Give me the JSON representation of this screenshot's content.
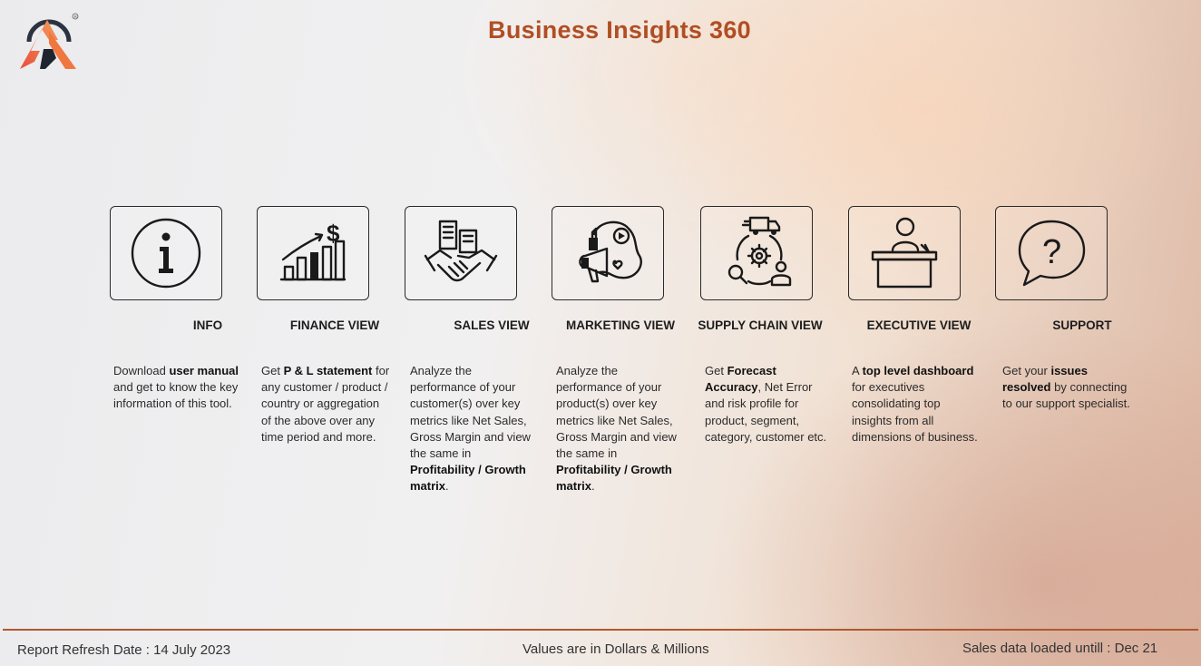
{
  "header": {
    "title": "Business Insights 360",
    "logo_icon": "atliq-logo-icon"
  },
  "cards": [
    {
      "title": "INFO",
      "icon": "info-icon",
      "desc": [
        "Download ",
        {
          "b": "user manual"
        },
        " and get to know the key information of this tool."
      ]
    },
    {
      "title": "FINANCE VIEW",
      "icon": "finance-chart-icon",
      "desc": [
        "Get ",
        {
          "b": "P & L statement"
        },
        " for any customer / product / country or aggregation of the above over any time period and more."
      ]
    },
    {
      "title": "SALES VIEW",
      "icon": "handshake-icon",
      "desc": [
        "Analyze the performance of  your customer(s) over key metrics like Net Sales, Gross Margin and view the same in ",
        {
          "b": "Profitability / Growth matrix"
        },
        "."
      ]
    },
    {
      "title": "MARKETING VIEW",
      "icon": "megaphone-icon",
      "desc": [
        "Analyze the performance of  your product(s) over key metrics like Net Sales, Gross Margin and view the same in ",
        {
          "b": "Profitability / Growth matrix"
        },
        "."
      ]
    },
    {
      "title": "SUPPLY CHAIN VIEW",
      "icon": "supply-chain-icon",
      "desc": [
        "Get ",
        {
          "b": "Forecast Accuracy"
        },
        ", Net Error and risk profile for product, segment, category, customer etc."
      ]
    },
    {
      "title": "EXECUTIVE VIEW",
      "icon": "executive-desk-icon",
      "desc": [
        "A ",
        {
          "b": "top level dashboard"
        },
        " for executives consolidating top insights from all dimensions of business."
      ]
    },
    {
      "title": "SUPPORT",
      "icon": "question-bubble-icon",
      "desc": [
        "Get your ",
        {
          "b": "issues resolved"
        },
        " by connecting to our support specialist."
      ]
    }
  ],
  "footer": {
    "refresh": "Report Refresh Date : 14 July 2023",
    "units": "Values are in Dollars & Millions",
    "loaded": "Sales data loaded untill : Dec 21"
  }
}
